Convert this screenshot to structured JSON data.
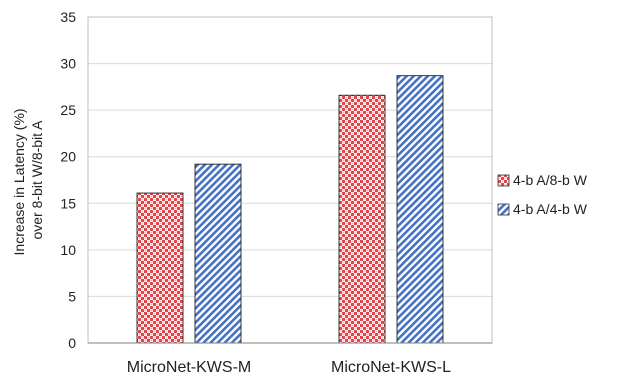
{
  "chart_data": {
    "type": "bar",
    "categories": [
      "MicroNet-KWS-M",
      "MicroNet-KWS-L"
    ],
    "series": [
      {
        "name": "4-b A/8-b W",
        "values": [
          16.1,
          26.6
        ],
        "color": "#e0474c",
        "pattern": "red-checker"
      },
      {
        "name": "4-b A/4-b W",
        "values": [
          19.2,
          28.7
        ],
        "color": "#4472c4",
        "pattern": "blue-diagonal"
      }
    ],
    "ylabel_lines": [
      "Increase in Latency (%)",
      "over 8-bit W/8-bit A"
    ],
    "ylim": [
      0,
      35
    ],
    "yticks": [
      0,
      5,
      10,
      15,
      20,
      25,
      30,
      35
    ],
    "grid": true,
    "legend_position": "right"
  }
}
